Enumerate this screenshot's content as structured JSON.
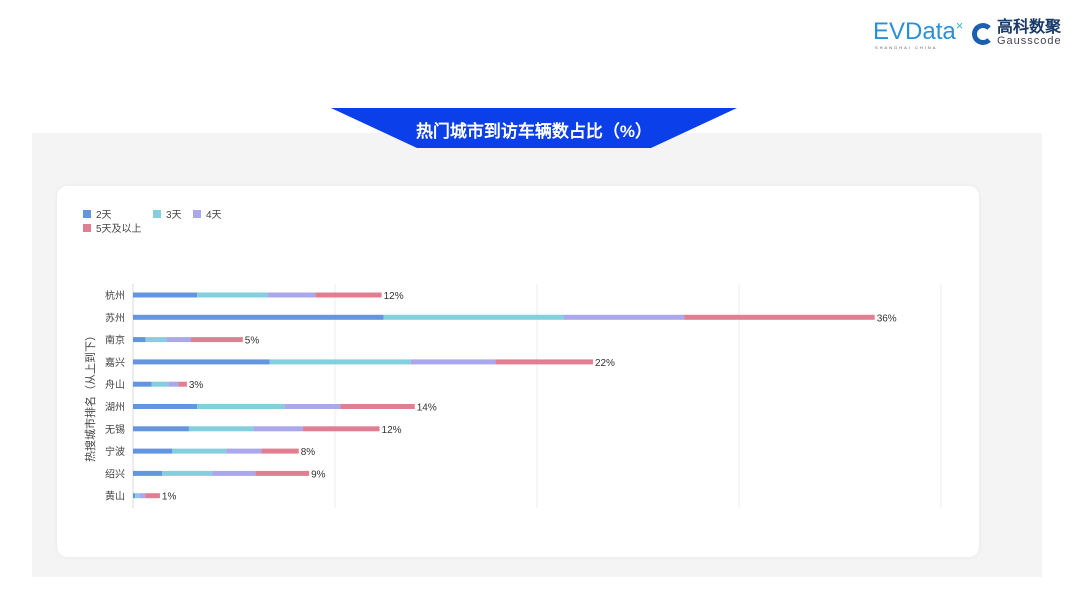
{
  "logos": {
    "evdata": "EVData",
    "evdata_sub": "SHANGHAI CHINA",
    "gauss_cn": "高科数聚",
    "gauss_en": "Gausscode"
  },
  "title": "热门城市到访车辆数占比（%）",
  "chart_data": {
    "type": "bar",
    "orientation": "horizontal",
    "stacked": true,
    "title": "热门城市到访车辆数占比（%）",
    "ylabel": "热搜城市排名（从上到下）",
    "xlabel": "",
    "xlim": [
      0,
      39
    ],
    "grid": true,
    "legend_position": "top-left",
    "categories": [
      "杭州",
      "苏州",
      "南京",
      "嘉兴",
      "舟山",
      "湖州",
      "无锡",
      "宁波",
      "绍兴",
      "黄山"
    ],
    "series": [
      {
        "name": "2天",
        "color": "#6495DF",
        "values": [
          3.1,
          12.1,
          0.6,
          6.6,
          0.9,
          3.1,
          2.7,
          1.9,
          1.4,
          0.1
        ]
      },
      {
        "name": "3天",
        "color": "#83CFDE",
        "values": [
          3.4,
          8.7,
          1.0,
          6.8,
          0.8,
          4.2,
          3.1,
          2.6,
          2.4,
          0.2
        ]
      },
      {
        "name": "4天",
        "color": "#ABA7EC",
        "values": [
          2.3,
          5.8,
          1.2,
          4.1,
          0.5,
          2.7,
          2.4,
          1.7,
          2.1,
          0.3
        ]
      },
      {
        "name": "5天及以上",
        "color": "#E07F91",
        "values": [
          3.2,
          9.2,
          2.5,
          4.7,
          0.4,
          3.6,
          3.7,
          1.8,
          2.6,
          0.7
        ]
      }
    ],
    "total_labels": [
      "12%",
      "36%",
      "5%",
      "22%",
      "3%",
      "14%",
      "12%",
      "8%",
      "9%",
      "1%"
    ]
  }
}
